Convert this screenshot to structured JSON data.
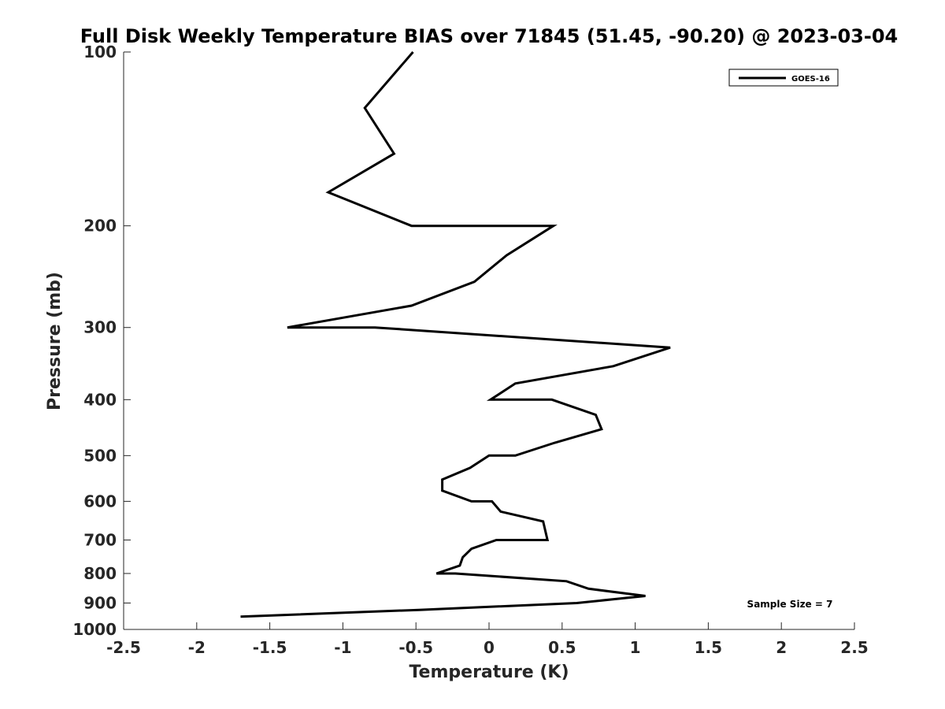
{
  "chart_data": {
    "type": "line",
    "title": "Full Disk Weekly Temperature BIAS over 71845 (51.45, -90.20) @ 2023-03-04",
    "xlabel": "Temperature (K)",
    "ylabel": "Pressure (mb)",
    "xlim": [
      -2.5,
      2.5
    ],
    "ylim": [
      100,
      1000
    ],
    "y_scale": "log",
    "y_reversed": true,
    "x_ticks": [
      "-2.5",
      "-2",
      "-1.5",
      "-1",
      "-0.5",
      "0",
      "0.5",
      "1",
      "1.5",
      "2",
      "2.5"
    ],
    "x_tick_values": [
      -2.5,
      -2,
      -1.5,
      -1,
      -0.5,
      0,
      0.5,
      1,
      1.5,
      2,
      2.5
    ],
    "y_ticks": [
      "100",
      "200",
      "300",
      "400",
      "500",
      "600",
      "700",
      "800",
      "900",
      "1000"
    ],
    "y_tick_values": [
      100,
      200,
      300,
      400,
      500,
      600,
      700,
      800,
      900,
      1000
    ],
    "grid": false,
    "legend_position": "top-right",
    "series": [
      {
        "name": "GOES-16",
        "color": "#000000",
        "points": [
          {
            "x": -0.52,
            "p": 100
          },
          {
            "x": -0.85,
            "p": 125
          },
          {
            "x": -0.65,
            "p": 150
          },
          {
            "x": -1.1,
            "p": 175
          },
          {
            "x": -0.53,
            "p": 200
          },
          {
            "x": 0.44,
            "p": 200
          },
          {
            "x": 0.12,
            "p": 225
          },
          {
            "x": -0.1,
            "p": 250
          },
          {
            "x": -0.53,
            "p": 275
          },
          {
            "x": -1.38,
            "p": 300
          },
          {
            "x": -0.78,
            "p": 300
          },
          {
            "x": 1.24,
            "p": 325
          },
          {
            "x": 0.85,
            "p": 350
          },
          {
            "x": 0.18,
            "p": 375
          },
          {
            "x": 0.01,
            "p": 400
          },
          {
            "x": 0.43,
            "p": 400
          },
          {
            "x": 0.73,
            "p": 425
          },
          {
            "x": 0.77,
            "p": 450
          },
          {
            "x": 0.45,
            "p": 475
          },
          {
            "x": 0.18,
            "p": 500
          },
          {
            "x": 0.0,
            "p": 500
          },
          {
            "x": -0.13,
            "p": 525
          },
          {
            "x": -0.32,
            "p": 550
          },
          {
            "x": -0.32,
            "p": 575
          },
          {
            "x": -0.12,
            "p": 600
          },
          {
            "x": 0.02,
            "p": 600
          },
          {
            "x": 0.08,
            "p": 625
          },
          {
            "x": 0.37,
            "p": 650
          },
          {
            "x": 0.4,
            "p": 700
          },
          {
            "x": 0.05,
            "p": 700
          },
          {
            "x": -0.12,
            "p": 725
          },
          {
            "x": -0.18,
            "p": 750
          },
          {
            "x": -0.2,
            "p": 775
          },
          {
            "x": -0.36,
            "p": 800
          },
          {
            "x": -0.23,
            "p": 800
          },
          {
            "x": 0.53,
            "p": 825
          },
          {
            "x": 0.68,
            "p": 850
          },
          {
            "x": 1.07,
            "p": 875
          },
          {
            "x": 0.6,
            "p": 900
          },
          {
            "x": -0.48,
            "p": 925
          },
          {
            "x": -1.7,
            "p": 950
          }
        ]
      }
    ],
    "annotations": [
      "Sample Size = 7"
    ]
  }
}
